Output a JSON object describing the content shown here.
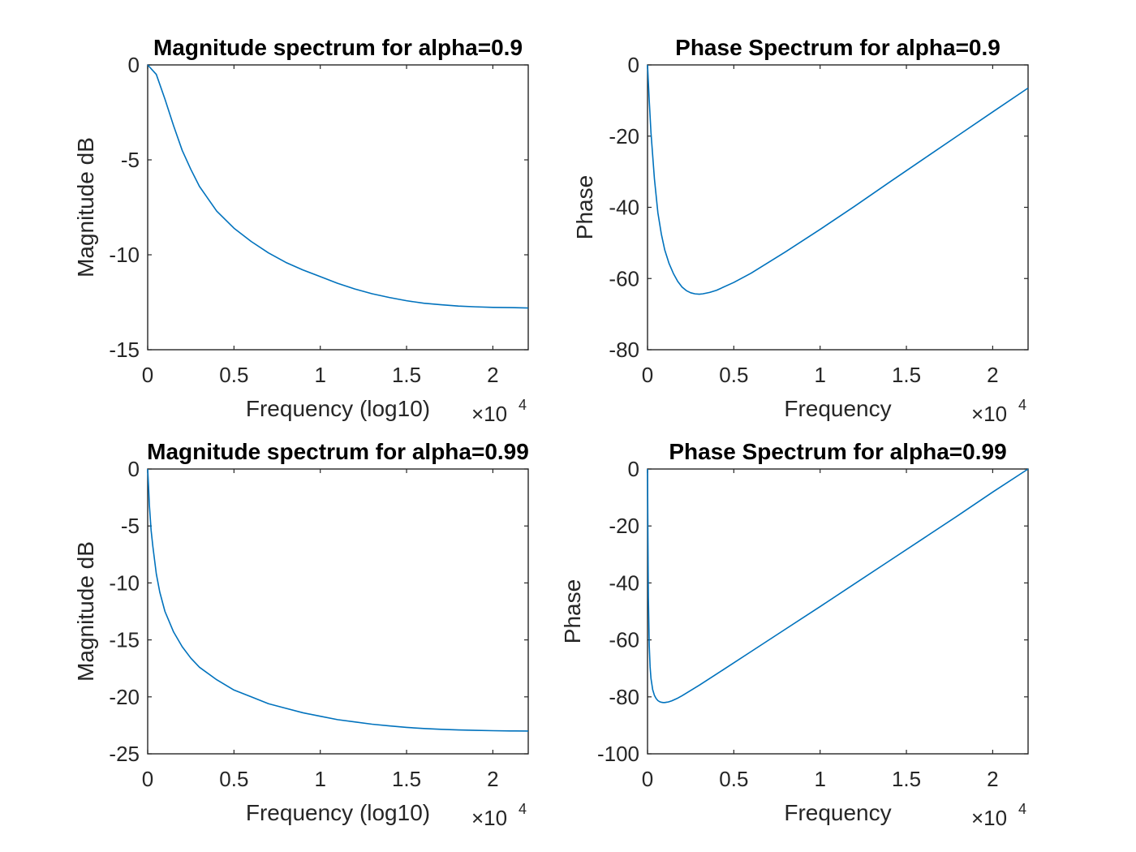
{
  "figure": {
    "background": "#ffffff",
    "axis_color": "#262626",
    "line_color": "#0072bd"
  },
  "chart_data": [
    {
      "type": "line",
      "title": "Magnitude spectrum for alpha=0.9",
      "xlabel": "Frequency (log10)",
      "ylabel": "Magnitude dB",
      "xlim": [
        0,
        22050
      ],
      "ylim": [
        -15,
        0
      ],
      "xticks": [
        0,
        5000,
        10000,
        15000,
        20000
      ],
      "xtick_labels": [
        "0",
        "0.5",
        "1",
        "1.5",
        "2"
      ],
      "yticks": [
        -15,
        -10,
        -5,
        0
      ],
      "ytick_labels": [
        "-15",
        "-10",
        "-5",
        "0"
      ],
      "x_exponent": {
        "prefix": "×10",
        "power": "4"
      },
      "grid": false,
      "series": [
        {
          "x": [
            0,
            500,
            1000,
            1500,
            2000,
            2500,
            3000,
            4000,
            5000,
            6000,
            7000,
            8000,
            9000,
            10000,
            11000,
            12000,
            13000,
            14000,
            15000,
            16000,
            17000,
            18000,
            19000,
            20000,
            21000,
            22050
          ],
          "y": [
            0,
            -0.5,
            -1.8,
            -3.2,
            -4.5,
            -5.5,
            -6.4,
            -7.7,
            -8.6,
            -9.3,
            -9.9,
            -10.4,
            -10.8,
            -11.15,
            -11.5,
            -11.8,
            -12.05,
            -12.25,
            -12.42,
            -12.55,
            -12.63,
            -12.7,
            -12.74,
            -12.77,
            -12.78,
            -12.8
          ]
        }
      ]
    },
    {
      "type": "line",
      "title": "Phase Spectrum for alpha=0.9",
      "xlabel": "Frequency",
      "ylabel": "Phase",
      "xlim": [
        0,
        22050
      ],
      "ylim": [
        -80,
        0
      ],
      "xticks": [
        0,
        5000,
        10000,
        15000,
        20000
      ],
      "xtick_labels": [
        "0",
        "0.5",
        "1",
        "1.5",
        "2"
      ],
      "yticks": [
        -80,
        -60,
        -40,
        -20,
        0
      ],
      "ytick_labels": [
        "-80",
        "-60",
        "-40",
        "-20",
        "0"
      ],
      "x_exponent": {
        "prefix": "×10",
        "power": "4"
      },
      "grid": false,
      "series": [
        {
          "x": [
            0,
            100,
            200,
            400,
            600,
            800,
            1000,
            1250,
            1500,
            1750,
            2000,
            2250,
            2500,
            2750,
            3000,
            3200,
            3600,
            4000,
            5000,
            6000,
            8000,
            10000,
            12000,
            14000,
            16000,
            18000,
            20000,
            22050
          ],
          "y": [
            0,
            -10,
            -19,
            -32,
            -41.5,
            -47.5,
            -52,
            -55.8,
            -58.6,
            -60.8,
            -62.4,
            -63.4,
            -64,
            -64.3,
            -64.4,
            -64.3,
            -63.9,
            -63.3,
            -61.1,
            -58.5,
            -52.5,
            -46.2,
            -39.7,
            -33,
            -26.4,
            -19.8,
            -13.2,
            -6.5
          ]
        }
      ]
    },
    {
      "type": "line",
      "title": "Magnitude spectrum for alpha=0.99",
      "xlabel": "Frequency (log10)",
      "ylabel": "Magnitude dB",
      "xlim": [
        0,
        22050
      ],
      "ylim": [
        -25,
        0
      ],
      "xticks": [
        0,
        5000,
        10000,
        15000,
        20000
      ],
      "xtick_labels": [
        "0",
        "0.5",
        "1",
        "1.5",
        "2"
      ],
      "yticks": [
        -25,
        -20,
        -15,
        -10,
        -5,
        0
      ],
      "ytick_labels": [
        "-25",
        "-20",
        "-15",
        "-10",
        "-5",
        "0"
      ],
      "x_exponent": {
        "prefix": "×10",
        "power": "4"
      },
      "grid": false,
      "series": [
        {
          "x": [
            0,
            50,
            100,
            200,
            300,
            500,
            700,
            1000,
            1500,
            2000,
            2500,
            3000,
            4000,
            5000,
            6000,
            7000,
            8000,
            9000,
            10000,
            11000,
            12000,
            13000,
            14000,
            15000,
            16000,
            17000,
            18000,
            19000,
            20000,
            21000,
            22050
          ],
          "y": [
            0,
            -1.5,
            -3.2,
            -5.4,
            -6.8,
            -9.2,
            -10.8,
            -12.5,
            -14.3,
            -15.6,
            -16.6,
            -17.4,
            -18.5,
            -19.4,
            -20.0,
            -20.6,
            -21.0,
            -21.4,
            -21.7,
            -22.0,
            -22.2,
            -22.4,
            -22.55,
            -22.68,
            -22.78,
            -22.85,
            -22.9,
            -22.94,
            -22.97,
            -22.99,
            -23.0
          ]
        }
      ]
    },
    {
      "type": "line",
      "title": "Phase Spectrum for alpha=0.99",
      "xlabel": "Frequency",
      "ylabel": "Phase",
      "xlim": [
        0,
        22050
      ],
      "ylim": [
        -100,
        0
      ],
      "xticks": [
        0,
        5000,
        10000,
        15000,
        20000
      ],
      "xtick_labels": [
        "0",
        "0.5",
        "1",
        "1.5",
        "2"
      ],
      "yticks": [
        -100,
        -80,
        -60,
        -40,
        -20,
        0
      ],
      "ytick_labels": [
        "-100",
        "-80",
        "-60",
        "-40",
        "-20",
        "0"
      ],
      "x_exponent": {
        "prefix": "×10",
        "power": "4"
      },
      "grid": false,
      "series": [
        {
          "x": [
            0,
            25,
            50,
            100,
            150,
            200,
            300,
            400,
            500,
            600,
            700,
            800,
            900,
            1000,
            1100,
            1200,
            1400,
            1700,
            2000,
            3000,
            4000,
            6000,
            8000,
            10000,
            12000,
            14000,
            16000,
            18000,
            20000,
            22050
          ],
          "y": [
            0,
            -25,
            -45,
            -62,
            -69.5,
            -73.5,
            -77.5,
            -79.5,
            -80.6,
            -81.3,
            -81.7,
            -81.9,
            -82,
            -82,
            -81.9,
            -81.8,
            -81.4,
            -80.6,
            -79.6,
            -75.9,
            -72,
            -64.1,
            -56.2,
            -48.3,
            -40.3,
            -32.3,
            -24.3,
            -16.3,
            -8.1,
            0
          ]
        }
      ]
    }
  ]
}
